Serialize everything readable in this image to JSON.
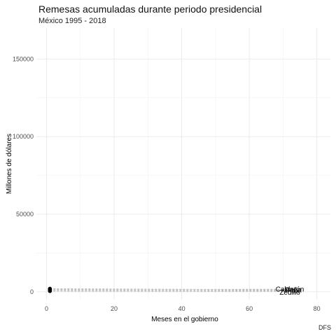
{
  "chart_data": {
    "type": "line",
    "title": "Remesas acumuladas durante periodo presidencial",
    "subtitle": "México 1995 - 2018",
    "xlabel": "Meses en el gobierno",
    "ylabel": "Millones de dólares",
    "caption": "DFS",
    "xlim": [
      -3,
      84
    ],
    "ylim": [
      -5000,
      170000
    ],
    "x_ticks": [
      0,
      20,
      40,
      60,
      80
    ],
    "y_ticks": [
      0,
      50000,
      100000,
      150000
    ],
    "grid": true,
    "legend": "none",
    "series": [
      {
        "name": "Zedillo",
        "x": [
          1,
          72
        ],
        "y": [
          500,
          300
        ],
        "color": "#bdbdbd"
      },
      {
        "name": "Fox",
        "x": [
          1,
          72
        ],
        "y": [
          900,
          800
        ],
        "color": "#bdbdbd"
      },
      {
        "name": "Calderón",
        "x": [
          1,
          72
        ],
        "y": [
          1500,
          1600
        ],
        "color": "#bdbdbd"
      },
      {
        "name": "Peña",
        "x": [
          1,
          72
        ],
        "y": [
          2000,
          1200
        ],
        "color": "#bdbdbd"
      }
    ],
    "labels": [
      {
        "text": "Calderón",
        "x": 72,
        "y": 1600
      },
      {
        "text": "Peña",
        "x": 73,
        "y": 1200
      },
      {
        "text": "Fox",
        "x": 73,
        "y": 700
      },
      {
        "text": "Zedillo",
        "x": 72,
        "y": -600
      }
    ]
  }
}
